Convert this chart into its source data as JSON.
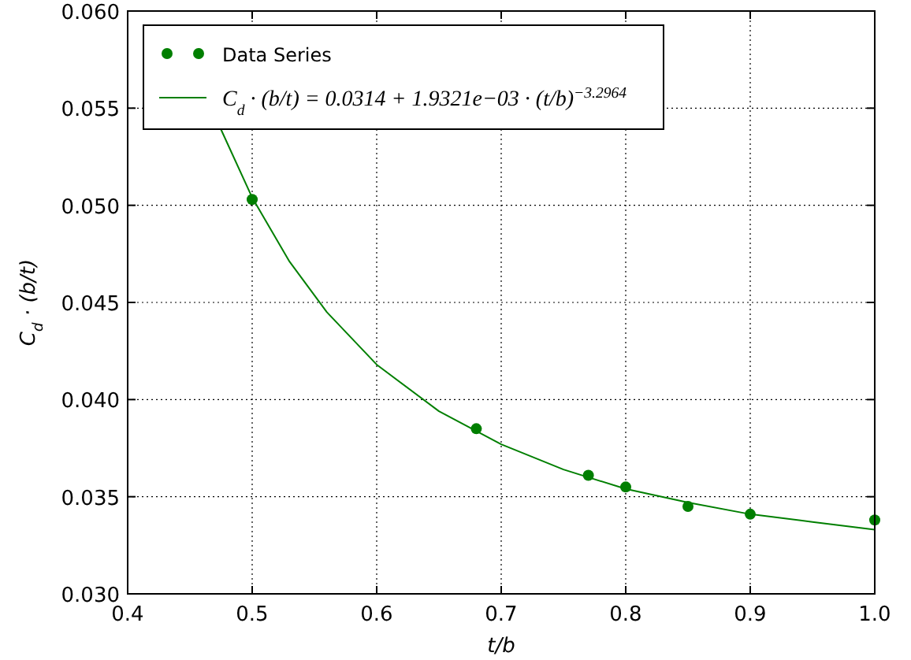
{
  "chart_data": {
    "type": "scatter",
    "xlabel": "t/b",
    "ylabel": "C$_{d}$ · (b/t)",
    "xlim": [
      0.4,
      1.0
    ],
    "xticks": [
      0.4,
      0.5,
      0.6,
      0.7,
      0.8,
      0.9,
      {
        "value": 1.0,
        "label": "1.0"
      }
    ],
    "ylim": [
      0.03,
      0.06
    ],
    "yticks": [
      {
        "value": 0.03,
        "label": "0.030"
      },
      {
        "value": 0.035,
        "label": "0.035"
      },
      {
        "value": 0.04,
        "label": "0.040"
      },
      {
        "value": 0.045,
        "label": "0.045"
      },
      {
        "value": 0.05,
        "label": "0.050"
      },
      {
        "value": 0.055,
        "label": "0.055"
      },
      {
        "value": 0.06,
        "label": "0.060"
      }
    ],
    "grid": true,
    "legend": "top left",
    "series": [
      {
        "name": "Data Series",
        "color": "#007f00",
        "marker": "circle",
        "x": [
          0.5,
          0.68,
          0.77,
          0.8,
          0.85,
          0.9,
          1.0
        ],
        "values": [
          0.0503,
          0.0385,
          0.0361,
          0.0355,
          0.0345,
          0.0341,
          0.0338
        ]
      },
      {
        "name": "C$_{d}$ · (b/t) = 0.0314 + 1.9321e−03 · (t/b)$^{−3.2964}$",
        "type": "line",
        "color": "#007f00",
        "marker": "none",
        "line_style": "solid",
        "x": [
          0.475,
          0.5,
          0.53,
          0.56,
          0.6,
          0.65,
          0.7,
          0.75,
          0.8,
          0.85,
          0.9,
          0.95,
          1.0
        ],
        "values": [
          0.0539,
          0.0504,
          0.0471,
          0.0445,
          0.0418,
          0.0394,
          0.0377,
          0.0364,
          0.0354,
          0.0347,
          0.0341,
          0.0337,
          0.0333
        ]
      }
    ]
  }
}
